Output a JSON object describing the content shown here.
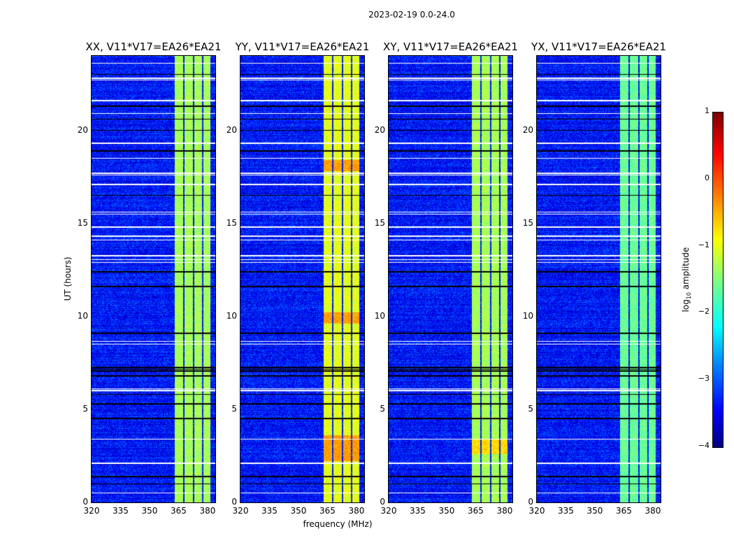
{
  "chart_data": {
    "type": "heatmap",
    "title": "2023-02-19 0.0-24.0",
    "xlabel": "frequency (MHz)",
    "ylabel": "UT (hours)",
    "xlim": [
      320,
      384
    ],
    "ylim": [
      0,
      24
    ],
    "xticks": [
      "320",
      "335",
      "350",
      "365",
      "380"
    ],
    "xtick_values": [
      320,
      335,
      350,
      365,
      380
    ],
    "yticks": [
      "0",
      "5",
      "10",
      "15",
      "20"
    ],
    "ytick_values": [
      0,
      5,
      10,
      15,
      20
    ],
    "colorbar": {
      "label": "log10 amplitude",
      "label_main": "log",
      "label_sub": "10",
      "label_rest": " amplitude",
      "range": [
        -4,
        1
      ],
      "ticks": [
        "1",
        "0",
        "−1",
        "−2",
        "−3",
        "−4"
      ],
      "tick_values": [
        1,
        0,
        -1,
        -2,
        -3,
        -4
      ],
      "colormap": "jet"
    },
    "background_level": -3.3,
    "band_segments_mhz": [
      [
        363,
        367.5
      ],
      [
        368,
        372.3
      ],
      [
        373,
        377.3
      ],
      [
        377.8,
        381.5
      ]
    ],
    "flagged_white_hours": [
      0.5,
      2.1,
      3.4,
      6.0,
      6.1,
      8.5,
      8.65,
      12.9,
      13.05,
      13.25,
      14.1,
      14.3,
      14.8,
      15.5,
      15.6,
      17.1,
      17.6,
      17.7,
      18.5,
      19.3,
      20.9,
      21.6,
      22.7,
      22.8,
      23.6
    ],
    "flagged_black_hours": [
      1.0,
      1.4,
      4.5,
      5.3,
      5.8,
      6.8,
      7.05,
      7.15,
      7.25,
      9.1,
      11.6,
      12.4,
      16.5,
      18.9,
      20.0,
      20.6,
      21.3,
      23.0
    ],
    "panels": [
      {
        "title": "XX, V11*V17=EA26*EA21",
        "band_level": -1.3,
        "hot_hours": []
      },
      {
        "title": "YY, V11*V17=EA26*EA21",
        "band_level": -1.0,
        "hot_hours": [
          [
            2.2,
            3.6
          ],
          [
            9.6,
            10.2
          ],
          [
            17.8,
            18.4
          ]
        ]
      },
      {
        "title": "XY, V11*V17=EA26*EA21",
        "band_level": -1.3,
        "hot_hours": [
          [
            2.6,
            3.4
          ]
        ]
      },
      {
        "title": "YX, V11*V17=EA26*EA21",
        "band_level": -1.6,
        "hot_hours": []
      }
    ]
  }
}
